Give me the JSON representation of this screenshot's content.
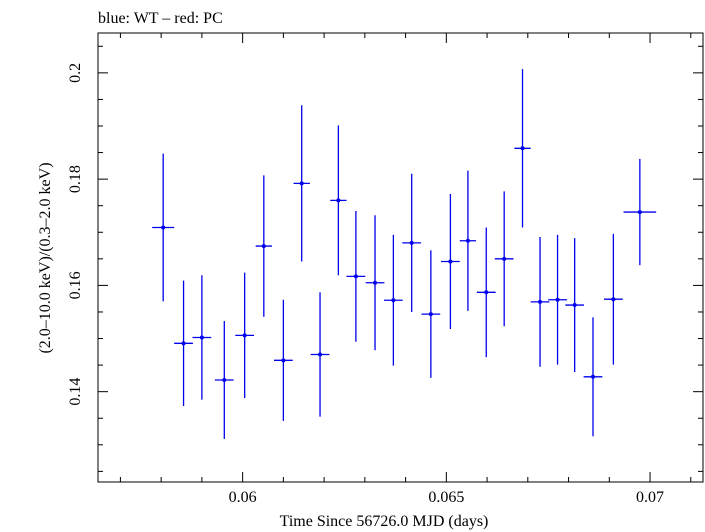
{
  "chart_data": {
    "type": "scatter",
    "title": "blue: WT – red: PC",
    "xlabel": "Time Since 56726.0 MJD (days)",
    "ylabel": "(2.0–10.0 keV)/(0.3–2.0 keV)",
    "xlim": [
      0.05645,
      0.0713
    ],
    "ylim": [
      0.123,
      0.2075
    ],
    "xticks": [
      0.06,
      0.065,
      0.07
    ],
    "xtick_labels": [
      "0.06",
      "0.065",
      "0.07"
    ],
    "yticks": [
      0.14,
      0.16,
      0.18,
      0.2
    ],
    "ytick_labels": [
      "0.14",
      "0.16",
      "0.18",
      "0.2"
    ],
    "grid": false,
    "series": [
      {
        "color": "#0000ee",
        "points": [
          {
            "x": 0.05805,
            "xerr": 0.00027,
            "y": 0.1709,
            "yerr": 0.0139
          },
          {
            "x": 0.05855,
            "xerr": 0.00023,
            "y": 0.1491,
            "yerr": 0.0118
          },
          {
            "x": 0.059,
            "xerr": 0.00023,
            "y": 0.1502,
            "yerr": 0.0117
          },
          {
            "x": 0.05955,
            "xerr": 0.00023,
            "y": 0.1422,
            "yerr": 0.0111
          },
          {
            "x": 0.06005,
            "xerr": 0.00023,
            "y": 0.1506,
            "yerr": 0.0118
          },
          {
            "x": 0.06052,
            "xerr": 0.0002,
            "y": 0.1674,
            "yerr": 0.0133
          },
          {
            "x": 0.061,
            "xerr": 0.00023,
            "y": 0.1459,
            "yerr": 0.0114
          },
          {
            "x": 0.06145,
            "xerr": 0.0002,
            "y": 0.1792,
            "yerr": 0.0147
          },
          {
            "x": 0.0619,
            "xerr": 0.00023,
            "y": 0.147,
            "yerr": 0.0117
          },
          {
            "x": 0.06235,
            "xerr": 0.0002,
            "y": 0.176,
            "yerr": 0.0141
          },
          {
            "x": 0.06278,
            "xerr": 0.00023,
            "y": 0.1617,
            "yerr": 0.0123
          },
          {
            "x": 0.06325,
            "xerr": 0.00023,
            "y": 0.1605,
            "yerr": 0.0127
          },
          {
            "x": 0.0637,
            "xerr": 0.00023,
            "y": 0.1572,
            "yerr": 0.0123
          },
          {
            "x": 0.06415,
            "xerr": 0.00023,
            "y": 0.168,
            "yerr": 0.013
          },
          {
            "x": 0.06462,
            "xerr": 0.00023,
            "y": 0.1546,
            "yerr": 0.012
          },
          {
            "x": 0.0651,
            "xerr": 0.00023,
            "y": 0.1645,
            "yerr": 0.0127
          },
          {
            "x": 0.06553,
            "xerr": 0.0002,
            "y": 0.1684,
            "yerr": 0.0132
          },
          {
            "x": 0.06598,
            "xerr": 0.00023,
            "y": 0.1587,
            "yerr": 0.0122
          },
          {
            "x": 0.06642,
            "xerr": 0.00023,
            "y": 0.165,
            "yerr": 0.0127
          },
          {
            "x": 0.06687,
            "xerr": 0.0002,
            "y": 0.1858,
            "yerr": 0.0149
          },
          {
            "x": 0.0673,
            "xerr": 0.00023,
            "y": 0.1569,
            "yerr": 0.0122
          },
          {
            "x": 0.06773,
            "xerr": 0.00023,
            "y": 0.1573,
            "yerr": 0.0122
          },
          {
            "x": 0.06815,
            "xerr": 0.00023,
            "y": 0.1563,
            "yerr": 0.0126
          },
          {
            "x": 0.0686,
            "xerr": 0.00023,
            "y": 0.1428,
            "yerr": 0.0112
          },
          {
            "x": 0.0691,
            "xerr": 0.00023,
            "y": 0.1574,
            "yerr": 0.0123
          },
          {
            "x": 0.06975,
            "xerr": 0.0004,
            "y": 0.1738,
            "yerr": 0.01
          }
        ]
      }
    ]
  }
}
